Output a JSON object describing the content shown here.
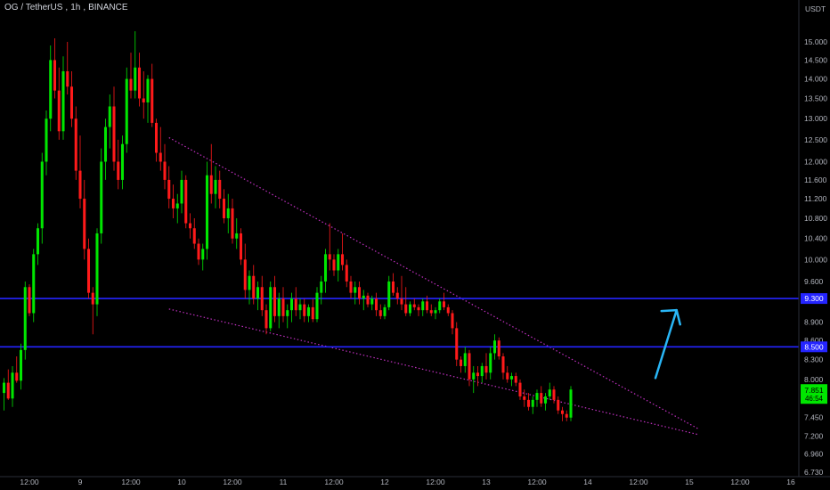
{
  "header": {
    "symbol": "OG / TetherUS",
    "interval": "1h",
    "exchange": "BINANCE",
    "currency": "USDT"
  },
  "price_badge": {
    "price": "7.851",
    "countdown": "46:54",
    "color": "#00e600"
  },
  "level_labels": [
    "9.300",
    "8.500"
  ],
  "colors": {
    "background": "#000000",
    "up_candle": "#00e600",
    "down_candle": "#ff1a1a",
    "level_line": "#2424ff",
    "wedge_line": "#c030c0",
    "arrow": "#29b6f6",
    "axis_text": "#b2b5be"
  },
  "chart_data": {
    "type": "candlestick",
    "title": "OG / TetherUS, 1h, BINANCE",
    "y_unit": "USDT",
    "y_scale": "log",
    "ylim": [
      6.73,
      16.0
    ],
    "y_ticks": [
      15.0,
      14.5,
      14.0,
      13.5,
      13.0,
      12.5,
      12.0,
      11.6,
      11.2,
      10.8,
      10.4,
      10.0,
      9.6,
      8.9,
      8.6,
      8.3,
      8.0,
      7.45,
      7.2,
      6.96,
      6.73
    ],
    "y_tick_labels": [
      "15.000",
      "14.500",
      "14.000",
      "13.500",
      "13.000",
      "12.500",
      "12.000",
      "11.600",
      "11.200",
      "10.800",
      "10.400",
      "10.000",
      "9.600",
      "8.900",
      "8.600",
      "8.300",
      "8.000",
      "7.450",
      "7.200",
      "6.960",
      "6.730"
    ],
    "x_ticks": [
      {
        "label": "12:00",
        "hour": -12
      },
      {
        "label": "9",
        "hour": 0
      },
      {
        "label": "12:00",
        "hour": 12
      },
      {
        "label": "10",
        "hour": 24
      },
      {
        "label": "12:00",
        "hour": 36
      },
      {
        "label": "11",
        "hour": 48
      },
      {
        "label": "12:00",
        "hour": 60
      },
      {
        "label": "12",
        "hour": 72
      },
      {
        "label": "12:00",
        "hour": 84
      },
      {
        "label": "13",
        "hour": 96
      },
      {
        "label": "12:00",
        "hour": 108
      },
      {
        "label": "14",
        "hour": 120
      },
      {
        "label": "12:00",
        "hour": 132
      },
      {
        "label": "15",
        "hour": 144
      },
      {
        "label": "12:00",
        "hour": 156
      },
      {
        "label": "16",
        "hour": 168
      }
    ],
    "x_range_hours": [
      -19,
      171
    ],
    "horizontal_levels": [
      9.3,
      8.5
    ],
    "wedge_lines": [
      {
        "from": {
          "hour": 21,
          "price": 12.55
        },
        "to": {
          "hour": 146,
          "price": 7.3
        }
      },
      {
        "from": {
          "hour": 21,
          "price": 9.12
        },
        "to": {
          "hour": 146,
          "price": 7.22
        }
      }
    ],
    "arrow": {
      "from": {
        "hour": 136,
        "price": 8.02
      },
      "to": {
        "hour": 141,
        "price": 9.1
      }
    },
    "candle_start_hour": -18,
    "candles": [
      [
        7.8,
        8.02,
        7.55,
        7.95
      ],
      [
        7.95,
        8.15,
        7.7,
        7.72
      ],
      [
        7.72,
        8.2,
        7.6,
        8.1
      ],
      [
        8.1,
        8.35,
        7.95,
        7.98
      ],
      [
        7.98,
        8.55,
        7.85,
        8.45
      ],
      [
        8.45,
        9.6,
        8.3,
        9.5
      ],
      [
        9.5,
        9.55,
        9.0,
        9.05
      ],
      [
        9.05,
        10.2,
        8.9,
        10.1
      ],
      [
        10.1,
        10.7,
        9.9,
        10.6
      ],
      [
        10.6,
        12.2,
        10.3,
        12.0
      ],
      [
        12.0,
        13.2,
        11.7,
        13.0
      ],
      [
        13.0,
        14.9,
        12.7,
        14.5
      ],
      [
        14.5,
        15.1,
        13.5,
        13.7
      ],
      [
        13.7,
        14.3,
        12.5,
        12.7
      ],
      [
        12.7,
        14.6,
        12.5,
        14.2
      ],
      [
        14.2,
        15.0,
        13.6,
        13.8
      ],
      [
        13.8,
        14.2,
        12.8,
        13.0
      ],
      [
        13.0,
        13.3,
        11.6,
        11.8
      ],
      [
        11.8,
        12.6,
        11.0,
        11.2
      ],
      [
        11.2,
        11.6,
        10.0,
        10.2
      ],
      [
        10.2,
        10.4,
        9.3,
        9.4
      ],
      [
        9.4,
        9.5,
        8.7,
        9.2
      ],
      [
        9.2,
        10.6,
        9.0,
        10.5
      ],
      [
        10.5,
        12.3,
        10.3,
        12.0
      ],
      [
        12.0,
        13.0,
        11.6,
        12.8
      ],
      [
        12.8,
        13.6,
        12.3,
        13.3
      ],
      [
        13.3,
        13.8,
        11.8,
        12.0
      ],
      [
        12.0,
        12.5,
        11.4,
        11.6
      ],
      [
        11.6,
        12.6,
        11.4,
        12.4
      ],
      [
        12.4,
        14.3,
        12.2,
        14.0
      ],
      [
        14.0,
        14.7,
        13.5,
        13.7
      ],
      [
        13.7,
        15.3,
        13.5,
        14.3
      ],
      [
        14.3,
        14.7,
        13.3,
        13.5
      ],
      [
        13.5,
        14.2,
        13.0,
        13.4
      ],
      [
        13.4,
        14.1,
        12.9,
        14.0
      ],
      [
        14.0,
        14.4,
        12.8,
        12.9
      ],
      [
        12.9,
        13.0,
        12.0,
        12.2
      ],
      [
        12.2,
        12.8,
        11.8,
        12.0
      ],
      [
        12.0,
        12.4,
        11.4,
        11.6
      ],
      [
        11.6,
        11.9,
        11.0,
        11.2
      ],
      [
        11.2,
        11.5,
        10.8,
        11.0
      ],
      [
        11.0,
        11.3,
        10.7,
        11.1
      ],
      [
        11.1,
        11.8,
        10.9,
        11.6
      ],
      [
        11.6,
        11.7,
        10.6,
        10.7
      ],
      [
        10.7,
        10.9,
        10.4,
        10.6
      ],
      [
        10.6,
        10.8,
        10.2,
        10.3
      ],
      [
        10.3,
        10.4,
        9.9,
        10.0
      ],
      [
        10.0,
        10.3,
        9.8,
        10.2
      ],
      [
        10.2,
        12.0,
        10.0,
        11.7
      ],
      [
        11.7,
        12.4,
        11.1,
        11.3
      ],
      [
        11.3,
        11.9,
        11.0,
        11.6
      ],
      [
        11.6,
        11.8,
        11.0,
        11.2
      ],
      [
        11.2,
        11.4,
        10.7,
        10.8
      ],
      [
        10.8,
        11.3,
        10.5,
        11.0
      ],
      [
        11.0,
        11.2,
        10.3,
        10.4
      ],
      [
        10.4,
        10.8,
        10.2,
        10.5
      ],
      [
        10.5,
        10.6,
        9.9,
        10.0
      ],
      [
        10.0,
        10.3,
        9.3,
        9.45
      ],
      [
        9.45,
        9.8,
        9.2,
        9.7
      ],
      [
        9.7,
        9.9,
        9.2,
        9.3
      ],
      [
        9.3,
        9.6,
        9.1,
        9.5
      ],
      [
        9.5,
        9.7,
        9.0,
        9.1
      ],
      [
        9.1,
        9.2,
        8.7,
        8.8
      ],
      [
        8.8,
        9.6,
        8.75,
        9.5
      ],
      [
        9.5,
        9.7,
        8.9,
        9.0
      ],
      [
        9.0,
        9.4,
        8.8,
        9.3
      ],
      [
        9.3,
        9.5,
        8.9,
        9.0
      ],
      [
        9.0,
        9.2,
        8.8,
        9.1
      ],
      [
        9.1,
        9.4,
        8.9,
        9.3
      ],
      [
        9.3,
        9.5,
        9.0,
        9.1
      ],
      [
        9.1,
        9.3,
        8.95,
        9.2
      ],
      [
        9.2,
        9.3,
        8.9,
        9.0
      ],
      [
        9.0,
        9.2,
        8.9,
        9.15
      ],
      [
        9.15,
        9.3,
        8.9,
        8.95
      ],
      [
        8.95,
        9.5,
        8.9,
        9.4
      ],
      [
        9.4,
        9.7,
        9.2,
        9.6
      ],
      [
        9.6,
        10.2,
        9.4,
        10.1
      ],
      [
        10.1,
        10.7,
        9.8,
        10.0
      ],
      [
        10.0,
        10.1,
        9.7,
        9.8
      ],
      [
        9.8,
        10.2,
        9.6,
        10.1
      ],
      [
        10.1,
        10.5,
        9.8,
        9.9
      ],
      [
        9.9,
        10.0,
        9.5,
        9.6
      ],
      [
        9.6,
        9.7,
        9.3,
        9.4
      ],
      [
        9.4,
        9.6,
        9.2,
        9.5
      ],
      [
        9.5,
        9.6,
        9.2,
        9.3
      ],
      [
        9.3,
        9.45,
        9.1,
        9.35
      ],
      [
        9.35,
        9.4,
        9.15,
        9.2
      ],
      [
        9.2,
        9.35,
        9.1,
        9.3
      ],
      [
        9.3,
        9.4,
        9.0,
        9.1
      ],
      [
        9.1,
        9.2,
        8.95,
        9.0
      ],
      [
        9.0,
        9.2,
        8.95,
        9.15
      ],
      [
        9.15,
        9.7,
        9.1,
        9.6
      ],
      [
        9.6,
        9.75,
        9.35,
        9.4
      ],
      [
        9.4,
        9.5,
        9.2,
        9.3
      ],
      [
        9.3,
        9.7,
        9.1,
        9.2
      ],
      [
        9.2,
        9.5,
        9.0,
        9.05
      ],
      [
        9.05,
        9.25,
        9.0,
        9.2
      ],
      [
        9.2,
        9.3,
        9.1,
        9.15
      ],
      [
        9.15,
        9.2,
        9.0,
        9.1
      ],
      [
        9.1,
        9.3,
        9.0,
        9.25
      ],
      [
        9.25,
        9.35,
        9.05,
        9.1
      ],
      [
        9.1,
        9.2,
        9.0,
        9.05
      ],
      [
        9.05,
        9.15,
        8.95,
        9.1
      ],
      [
        9.1,
        9.3,
        9.05,
        9.25
      ],
      [
        9.25,
        9.4,
        9.1,
        9.15
      ],
      [
        9.15,
        9.2,
        9.0,
        9.05
      ],
      [
        9.05,
        9.1,
        8.7,
        8.8
      ],
      [
        8.8,
        8.9,
        8.2,
        8.3
      ],
      [
        8.3,
        8.35,
        8.1,
        8.2
      ],
      [
        8.2,
        8.5,
        8.1,
        8.4
      ],
      [
        8.4,
        8.45,
        7.9,
        8.0
      ],
      [
        8.0,
        8.2,
        7.8,
        8.1
      ],
      [
        8.1,
        8.2,
        7.9,
        8.05
      ],
      [
        8.05,
        8.25,
        7.95,
        8.2
      ],
      [
        8.2,
        8.4,
        8.0,
        8.1
      ],
      [
        8.1,
        8.5,
        8.0,
        8.4
      ],
      [
        8.4,
        8.7,
        8.3,
        8.6
      ],
      [
        8.6,
        8.65,
        8.3,
        8.35
      ],
      [
        8.35,
        8.4,
        8.0,
        8.1
      ],
      [
        8.1,
        8.2,
        7.95,
        8.0
      ],
      [
        8.0,
        8.1,
        7.9,
        8.05
      ],
      [
        8.05,
        8.1,
        7.9,
        7.95
      ],
      [
        7.95,
        8.0,
        7.7,
        7.75
      ],
      [
        7.75,
        7.85,
        7.6,
        7.7
      ],
      [
        7.7,
        7.8,
        7.55,
        7.6
      ],
      [
        7.6,
        7.75,
        7.5,
        7.7
      ],
      [
        7.7,
        7.85,
        7.6,
        7.8
      ],
      [
        7.8,
        7.9,
        7.6,
        7.65
      ],
      [
        7.65,
        7.8,
        7.55,
        7.75
      ],
      [
        7.75,
        7.95,
        7.7,
        7.85
      ],
      [
        7.85,
        7.9,
        7.65,
        7.7
      ],
      [
        7.7,
        7.75,
        7.5,
        7.55
      ],
      [
        7.55,
        7.6,
        7.4,
        7.5
      ],
      [
        7.5,
        7.55,
        7.4,
        7.45
      ],
      [
        7.45,
        7.9,
        7.4,
        7.85
      ]
    ]
  }
}
